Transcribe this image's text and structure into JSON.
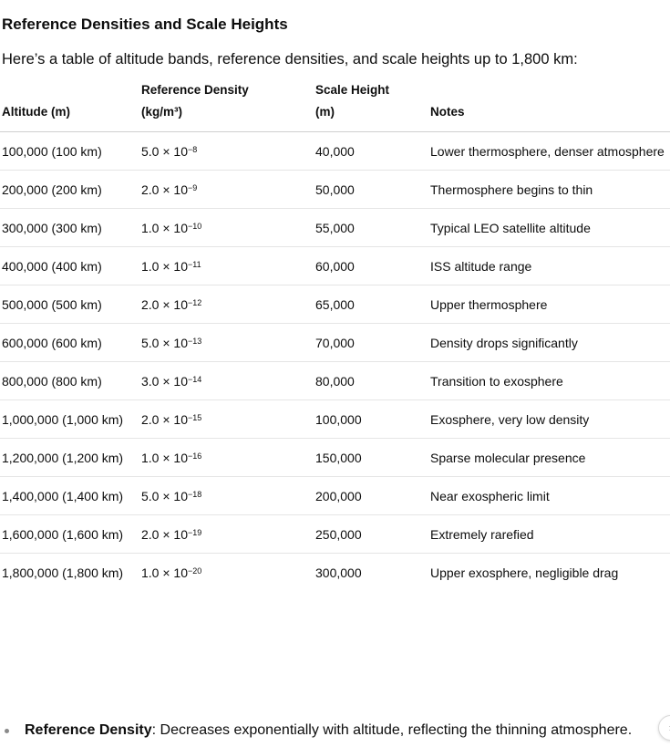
{
  "heading": "Reference Densities and Scale Heights",
  "intro": "Here’s a table of altitude bands, reference densities, and scale heights up to 1,800 km:",
  "table": {
    "headers": {
      "altitude": "Altitude (m)",
      "density_line1": "Reference Density",
      "density_line2": "(kg/m³)",
      "scale_line1": "Scale Height",
      "scale_line2": "(m)",
      "notes": "Notes"
    },
    "rows": [
      {
        "altitude": "100,000 (100 km)",
        "mantissa": "5.0 × 10",
        "exp": "−8",
        "scale": "40,000",
        "notes": "Lower thermosphere, denser atmosphere"
      },
      {
        "altitude": "200,000 (200 km)",
        "mantissa": "2.0 × 10",
        "exp": "−9",
        "scale": "50,000",
        "notes": "Thermosphere begins to thin"
      },
      {
        "altitude": "300,000 (300 km)",
        "mantissa": "1.0 × 10",
        "exp": "−10",
        "scale": "55,000",
        "notes": "Typical LEO satellite altitude"
      },
      {
        "altitude": "400,000 (400 km)",
        "mantissa": "1.0 × 10",
        "exp": "−11",
        "scale": "60,000",
        "notes": "ISS altitude range"
      },
      {
        "altitude": "500,000 (500 km)",
        "mantissa": "2.0 × 10",
        "exp": "−12",
        "scale": "65,000",
        "notes": "Upper thermosphere"
      },
      {
        "altitude": "600,000 (600 km)",
        "mantissa": "5.0 × 10",
        "exp": "−13",
        "scale": "70,000",
        "notes": "Density drops significantly"
      },
      {
        "altitude": "800,000 (800 km)",
        "mantissa": "3.0 × 10",
        "exp": "−14",
        "scale": "80,000",
        "notes": "Transition to exosphere"
      },
      {
        "altitude": "1,000,000 (1,000 km)",
        "mantissa": "2.0 × 10",
        "exp": "−15",
        "scale": "100,000",
        "notes": "Exosphere, very low density"
      },
      {
        "altitude": "1,200,000 (1,200 km)",
        "mantissa": "1.0 × 10",
        "exp": "−16",
        "scale": "150,000",
        "notes": "Sparse molecular presence"
      },
      {
        "altitude": "1,400,000 (1,400 km)",
        "mantissa": "5.0 × 10",
        "exp": "−18",
        "scale": "200,000",
        "notes": "Near exospheric limit"
      },
      {
        "altitude": "1,600,000 (1,600 km)",
        "mantissa": "2.0 × 10",
        "exp": "−19",
        "scale": "250,000",
        "notes": "Extremely rarefied"
      },
      {
        "altitude": "1,800,000 (1,800 km)",
        "mantissa": "1.0 × 10",
        "exp": "−20",
        "scale": "300,000",
        "notes": "Upper exosphere, negligible drag"
      }
    ]
  },
  "bullets": [
    {
      "term": "Reference Density",
      "text": ": Decreases exponentially with altitude, reflecting the thinning atmosphere."
    }
  ],
  "scroll_button": {
    "icon": "chevron-down-icon",
    "glyph": "›"
  }
}
